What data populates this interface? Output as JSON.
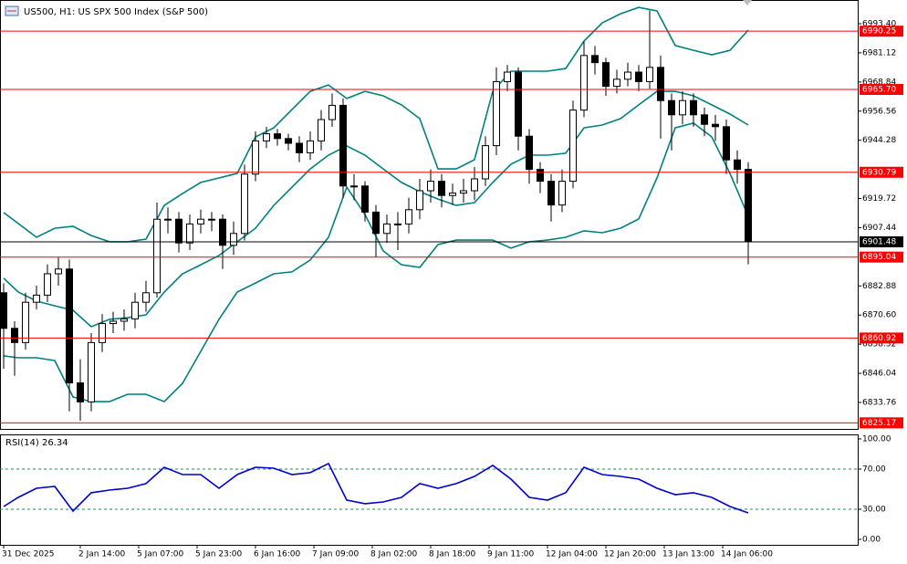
{
  "chart_data": [
    {
      "type": "candlestick",
      "title": "US500, H1:  US SPX 500 Index (S&P 500)",
      "x": [
        0,
        3,
        6,
        9,
        12,
        15,
        18,
        21,
        24,
        27,
        30,
        33,
        36,
        39,
        42,
        45,
        48,
        51,
        54,
        57,
        60,
        63,
        66,
        69,
        72,
        75,
        78,
        81,
        84,
        87,
        90,
        93,
        96,
        99,
        102,
        105,
        108,
        111,
        114,
        117,
        120,
        123,
        126,
        129,
        132,
        135,
        138,
        141,
        144,
        147,
        150,
        153,
        156,
        159,
        162,
        165,
        168,
        171,
        174,
        177,
        180,
        183,
        186,
        189,
        192,
        195,
        198,
        201,
        204
      ],
      "open": [
        6880,
        6865,
        6859,
        6876,
        6879,
        6888,
        6890,
        6842,
        6834,
        6859,
        6867,
        6868,
        6869,
        6876,
        6880,
        6911,
        6911,
        6901,
        6909,
        6911,
        6911,
        6900,
        6905,
        6930,
        6944,
        6947,
        6945,
        6943,
        6939,
        6944,
        6953,
        6959,
        6925,
        6925,
        6914,
        6905,
        6909,
        6909,
        6915,
        6923,
        6927,
        6921,
        6922,
        6923,
        6928,
        6942,
        6969,
        6973,
        6946,
        6932,
        6927,
        6917,
        6927,
        6957,
        6980,
        6977,
        6967,
        6970,
        6973,
        6969,
        6975,
        6961,
        6955,
        6961,
        6955,
        6951,
        6950,
        6936,
        6932
      ],
      "high": [
        6884,
        6868,
        6880,
        6883,
        6892,
        6895,
        6894,
        6852,
        6863,
        6871,
        6872,
        6873,
        6880,
        6885,
        6918,
        6916,
        6914,
        6913,
        6915,
        6914,
        6913,
        6910,
        6934,
        6948,
        6950,
        6949,
        6947,
        6946,
        6948,
        6957,
        6964,
        6962,
        6930,
        6927,
        6917,
        6913,
        6914,
        6920,
        6928,
        6932,
        6930,
        6926,
        6928,
        6933,
        6946,
        6975,
        6976,
        6975,
        6949,
        6935,
        6930,
        6932,
        6961,
        6986,
        6984,
        6979,
        6974,
        6977,
        6976,
        6999,
        6980,
        6964,
        6965,
        6964,
        6958,
        6955,
        6953,
        6940,
        6935
      ],
      "low": [
        6848,
        6845,
        6856,
        6873,
        6876,
        6883,
        6830,
        6826,
        6830,
        6855,
        6863,
        6864,
        6865,
        6872,
        6878,
        6905,
        6897,
        6898,
        6905,
        6906,
        6890,
        6896,
        6902,
        6927,
        6941,
        6942,
        6940,
        6935,
        6936,
        6940,
        6950,
        6920,
        6919,
        6910,
        6895,
        6901,
        6898,
        6905,
        6911,
        6918,
        6916,
        6917,
        6918,
        6919,
        6925,
        6938,
        6965,
        6940,
        6926,
        6922,
        6910,
        6914,
        6924,
        6954,
        6972,
        6963,
        6964,
        6967,
        6965,
        6966,
        6945,
        6940,
        6951,
        6950,
        6946,
        6944,
        6930,
        6926,
        6892
      ],
      "close": [
        6865,
        6859,
        6876,
        6879,
        6888,
        6890,
        6842,
        6834,
        6859,
        6867,
        6868,
        6869,
        6876,
        6880,
        6911,
        6911,
        6901,
        6909,
        6911,
        6911,
        6900,
        6905,
        6930,
        6944,
        6947,
        6945,
        6943,
        6939,
        6944,
        6953,
        6959,
        6925,
        6925,
        6914,
        6905,
        6909,
        6909,
        6915,
        6923,
        6927,
        6921,
        6922,
        6923,
        6928,
        6942,
        6969,
        6973,
        6946,
        6932,
        6927,
        6917,
        6927,
        6957,
        6980,
        6977,
        6967,
        6970,
        6973,
        6969,
        6975,
        6961,
        6955,
        6961,
        6955,
        6951,
        6950,
        6936,
        6932,
        6901.48
      ],
      "xlim": [
        -1,
        234
      ],
      "ylim": [
        6822.6,
        7003.4
      ],
      "yticks": [
        {
          "value": 6993.4,
          "label": "6993.40"
        },
        {
          "value": 6981.12,
          "label": "6981.12"
        },
        {
          "value": 6968.84,
          "label": "6968.84"
        },
        {
          "value": 6956.56,
          "label": "6956.56"
        },
        {
          "value": 6944.28,
          "label": "6944.28"
        },
        {
          "value": 6919.72,
          "label": "6919.72"
        },
        {
          "value": 6907.44,
          "label": "6907.44"
        },
        {
          "value": 6882.88,
          "label": "6882.88"
        },
        {
          "value": 6870.6,
          "label": "6870.60"
        },
        {
          "value": 6858.32,
          "label": "6858.32"
        },
        {
          "value": 6846.04,
          "label": "6846.04"
        },
        {
          "value": 6833.76,
          "label": "6833.76"
        }
      ],
      "bands": {
        "color": "#008080",
        "x": [
          0,
          4,
          9,
          14,
          19,
          24,
          29,
          34,
          39,
          44,
          49,
          54,
          59,
          64,
          69,
          74,
          79,
          84,
          89,
          94,
          99,
          104,
          109,
          114,
          119,
          124,
          129,
          134,
          139,
          144,
          149,
          154,
          159,
          164,
          169,
          174,
          179,
          184,
          189,
          194,
          199,
          204
        ],
        "upper": [
          6913.8,
          6909.2,
          6903.4,
          6907.2,
          6908.0,
          6904.1,
          6901.5,
          6901.5,
          6902.6,
          6916.8,
          6921.8,
          6926.5,
          6928.4,
          6930.3,
          6945.7,
          6949.5,
          6957.2,
          6964.9,
          6967.6,
          6961.9,
          6964.9,
          6963.0,
          6959.2,
          6953.4,
          6932.2,
          6932.2,
          6936.1,
          6964.9,
          6973.4,
          6973.4,
          6973.4,
          6974.5,
          6986.1,
          6993.8,
          6997.6,
          7000.3,
          6998.8,
          6984.2,
          6982.2,
          6980.3,
          6982.2,
          6990.7
        ],
        "middle": [
          6886.1,
          6880.3,
          6876.5,
          6874.5,
          6872.6,
          6865.7,
          6868.8,
          6869.5,
          6870.7,
          6880.3,
          6888.0,
          6891.8,
          6895.7,
          6901.5,
          6907.2,
          6916.8,
          6924.5,
          6932.2,
          6938.0,
          6941.9,
          6938.0,
          6932.2,
          6926.5,
          6922.6,
          6919.5,
          6916.8,
          6918.0,
          6926.5,
          6934.2,
          6938.0,
          6938.0,
          6938.8,
          6949.5,
          6950.7,
          6953.4,
          6959.2,
          6964.9,
          6964.9,
          6963.0,
          6959.2,
          6955.3,
          6950.7
        ],
        "lower": [
          6853.4,
          6852.6,
          6852.6,
          6851.4,
          6836.1,
          6834.1,
          6834.1,
          6837.2,
          6837.2,
          6834.1,
          6841.8,
          6855.3,
          6868.8,
          6880.3,
          6884.1,
          6888.0,
          6888.8,
          6893.8,
          6903.4,
          6924.5,
          6913.0,
          6897.6,
          6891.8,
          6890.7,
          6900.3,
          6902.2,
          6902.2,
          6902.2,
          6898.8,
          6901.5,
          6902.2,
          6903.4,
          6906.1,
          6905.3,
          6907.2,
          6911.1,
          6928.4,
          6949.5,
          6951.5,
          6945.7,
          6930.3,
          6912.2
        ]
      },
      "levels": [
        {
          "value": 6990.25,
          "label": "6990.25"
        },
        {
          "value": 6965.7,
          "label": "6965.70"
        },
        {
          "value": 6930.79,
          "label": "6930.79"
        },
        {
          "value": 6895.04,
          "label": "6895.04"
        },
        {
          "value": 6860.92,
          "label": "6860.92"
        },
        {
          "value": 6825.17,
          "label": "6825.17"
        }
      ],
      "level_color": "#ff0000",
      "current_price": {
        "value": 6901.48,
        "label": "6901.48"
      }
    },
    {
      "type": "line",
      "title": "RSI(14) 26.34",
      "color": "#0000cd",
      "x": [
        0,
        4,
        9,
        14,
        19,
        24,
        29,
        34,
        39,
        44,
        49,
        54,
        59,
        64,
        69,
        74,
        79,
        84,
        89,
        94,
        99,
        104,
        109,
        114,
        119,
        124,
        129,
        134,
        139,
        144,
        149,
        154,
        159,
        164,
        169,
        174,
        179,
        184,
        189,
        194,
        199,
        204
      ],
      "values": [
        32.7,
        41.8,
        50.9,
        52.7,
        28.2,
        46.4,
        49.1,
        50.9,
        55.5,
        71.8,
        64.5,
        64.5,
        50.9,
        64.5,
        71.8,
        70.9,
        64.5,
        66.4,
        75.5,
        39.1,
        35.5,
        37.3,
        41.8,
        55.5,
        50.9,
        55.5,
        62.7,
        73.6,
        60.0,
        41.8,
        39.1,
        46.4,
        71.8,
        64.5,
        62.7,
        60.0,
        50.9,
        44.5,
        46.4,
        41.8,
        32.7,
        26.34
      ],
      "xlim": [
        -1,
        234
      ],
      "ylim": [
        -5.45,
        104.5
      ],
      "yticks": [
        {
          "value": 100,
          "label": "100.00"
        },
        {
          "value": 70,
          "label": "70.00"
        },
        {
          "value": 30,
          "label": "30.00"
        },
        {
          "value": 0,
          "label": "0.00"
        }
      ],
      "levels": [
        70,
        30
      ],
      "xticks": [
        {
          "value": 0,
          "label": "31 Dec 2025"
        },
        {
          "value": 21,
          "label": "2 Jan 14:00"
        },
        {
          "value": 37,
          "label": "5 Jan 07:00"
        },
        {
          "value": 53,
          "label": "5 Jan 23:00"
        },
        {
          "value": 69,
          "label": "6 Jan 16:00"
        },
        {
          "value": 85,
          "label": "7 Jan 09:00"
        },
        {
          "value": 101,
          "label": "8 Jan 02:00"
        },
        {
          "value": 117,
          "label": "8 Jan 18:00"
        },
        {
          "value": 133,
          "label": "9 Jan 11:00"
        },
        {
          "value": 149,
          "label": "12 Jan 04:00"
        },
        {
          "value": 165,
          "label": "12 Jan 20:00"
        },
        {
          "value": 181,
          "label": "13 Jan 13:00"
        },
        {
          "value": 197,
          "label": "14 Jan 06:00"
        }
      ]
    }
  ]
}
